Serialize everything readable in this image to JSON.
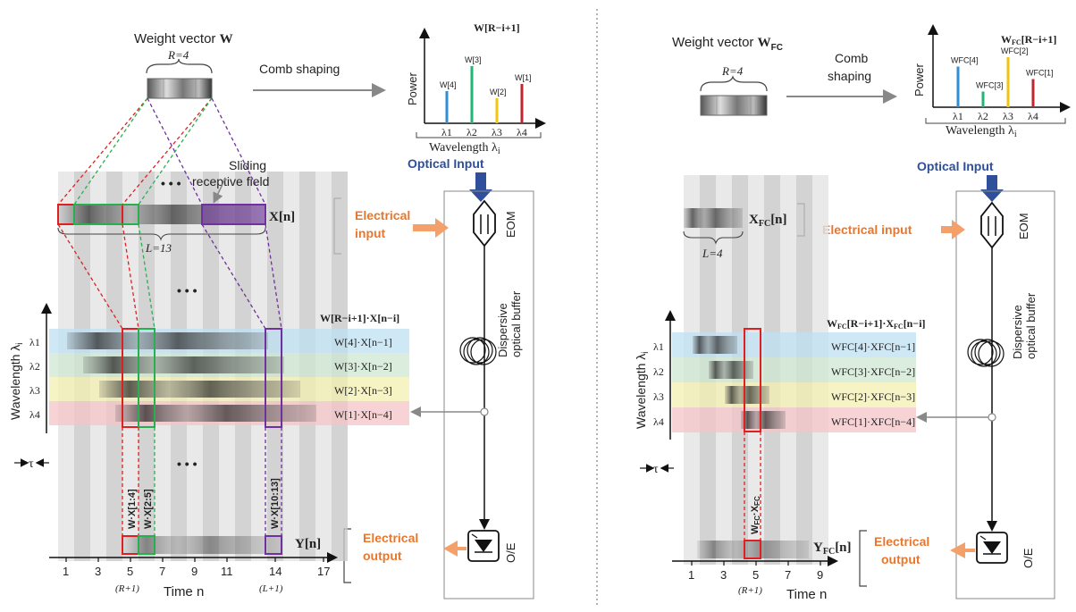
{
  "colors": {
    "optical_blue": "#2f4f9a",
    "electrical_orange": "#e8772e",
    "arrow_orange": "#f4a06a",
    "row1_blue": "#bfe0f2",
    "row2_green": "#cfe7d0",
    "row3_yellow": "#f3efb0",
    "row4_red": "#f4c4c8",
    "bar_blue": "#2e8fd6",
    "bar_green": "#22b573",
    "bar_yellow": "#f1c40f",
    "bar_red": "#c0262d",
    "highlight_red": "#e02020",
    "highlight_green": "#28b050",
    "highlight_purple": "#7030a0"
  },
  "icons": [
    "eom-modulator-icon",
    "fiber-coil-icon",
    "photodetector-icon"
  ],
  "left": {
    "weight_title": "Weight vector ",
    "weight_symbol": "W",
    "r_label": "R=4",
    "comb_shaping": "Comb shaping",
    "spectrum_title": "W[R−i+1]",
    "power_label": "Power",
    "wavelength_label": "Wavelength λ",
    "wavelength_sub": "i",
    "spectrum_bars": [
      {
        "label": "W[4]",
        "level": 0.45,
        "lambda": "λ1"
      },
      {
        "label": "W[3]",
        "level": 0.8,
        "lambda": "λ2"
      },
      {
        "label": "W[2]",
        "level": 0.35,
        "lambda": "λ3"
      },
      {
        "label": "W[1]",
        "level": 0.55,
        "lambda": "λ4"
      }
    ],
    "optical_input": "Optical Input",
    "sliding_field": "Sliding\nreceptive field",
    "ellipsis": "• • •",
    "x_label": "X[n]",
    "l_label": "L=13",
    "electrical_input": "Electrical\ninput",
    "eom": "EOM",
    "dispersive": "Dispersive\noptical buffer",
    "product_title": "W[R−i+1]·X[n−i]",
    "y_axis": "Wavelength λ",
    "y_axis_sub": "i",
    "lambda_labels": [
      "λ1",
      "λ2",
      "λ3",
      "λ4"
    ],
    "row_products": [
      "W[4]·X[n−1]",
      "W[3]·X[n−2]",
      "W[2]·X[n−3]",
      "W[1]·X[n−4]"
    ],
    "tau": "τ",
    "dot_labels": [
      "W·X[1:4]",
      "W·X[2:5]",
      "W·X[10:13]"
    ],
    "y_label": "Y[n]",
    "electrical_output": "Electrical\noutput",
    "oe": "O/E",
    "x_ticks": [
      "1",
      "3",
      "5",
      "7",
      "9",
      "11",
      "14",
      "17"
    ],
    "tick_note_1": "(R+1)",
    "tick_note_2": "(L+1)",
    "time_label": "Time n"
  },
  "right": {
    "weight_title": "Weight vector ",
    "weight_symbol": "W",
    "weight_sub": "FC",
    "r_label": "R=4",
    "comb_shaping": "Comb\nshaping",
    "spectrum_title": "WFC[R−i+1]",
    "power_label": "Power",
    "wavelength_label": "Wavelength λ",
    "wavelength_sub": "i",
    "spectrum_bars": [
      {
        "label": "WFC[4]",
        "level": 0.65,
        "lambda": "λ1"
      },
      {
        "label": "WFC[3]",
        "level": 0.25,
        "lambda": "λ2"
      },
      {
        "label": "WFC[2]",
        "level": 0.8,
        "lambda": "λ3"
      },
      {
        "label": "WFC[1]",
        "level": 0.45,
        "lambda": "λ4"
      }
    ],
    "optical_input": "Optical Input",
    "x_label": "XFC[n]",
    "l_label": "L=4",
    "electrical_input": "Electrical input",
    "eom": "EOM",
    "dispersive": "Dispersive\noptical buffer",
    "product_title": "WFC[R−i+1]·XFC[n−i]",
    "y_axis": "Wavelength λ",
    "y_axis_sub": "i",
    "lambda_labels": [
      "λ1",
      "λ2",
      "λ3",
      "λ4"
    ],
    "row_products": [
      "WFC[4]·XFC[n−1]",
      "WFC[3]·XFC[n−2]",
      "WFC[2]·XFC[n−3]",
      "WFC[1]·XFC[n−4]"
    ],
    "tau": "τ",
    "dot_label": "WFC·XFC",
    "y_label": "YFC[n]",
    "electrical_output": "Electrical\noutput",
    "oe": "O/E",
    "x_ticks": [
      "1",
      "3",
      "5",
      "7",
      "9"
    ],
    "tick_note": "(R+1)",
    "time_label": "Time n"
  }
}
